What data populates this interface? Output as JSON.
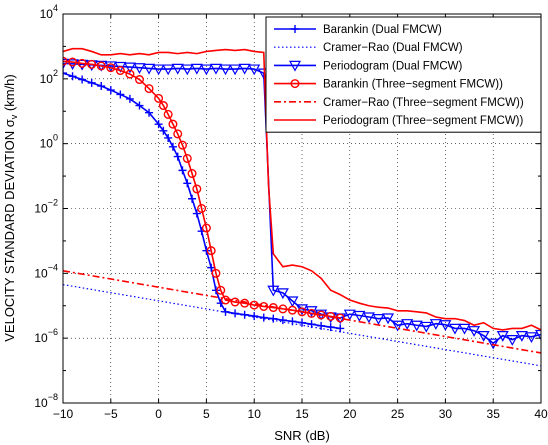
{
  "chart_data": {
    "type": "line",
    "title": "",
    "xlabel": "SNR (dB)",
    "ylabel": "VELOCITY STANDARD DEVIATION  σ",
    "ylabel_subscript": "v",
    "ylabel_unit": " (km/h)",
    "xlim": [
      -10,
      40
    ],
    "ylim": [
      1e-08,
      10000.0
    ],
    "yscale": "log",
    "grid": true,
    "legend_position": "top-right",
    "x_ticks": [
      -10,
      -5,
      0,
      5,
      10,
      15,
      20,
      25,
      30,
      35,
      40
    ],
    "x_tick_labels": [
      "−10",
      "−5",
      "0",
      "5",
      "10",
      "15",
      "20",
      "25",
      "30",
      "35",
      "40"
    ],
    "y_ticks": [
      1e-08,
      1e-06,
      0.0001,
      0.01,
      1,
      100,
      10000
    ],
    "y_tick_labels": [
      {
        "base": "10",
        "exp": "−8"
      },
      {
        "base": "10",
        "exp": "−6"
      },
      {
        "base": "10",
        "exp": "−4"
      },
      {
        "base": "10",
        "exp": "−2"
      },
      {
        "base": "10",
        "exp": "0"
      },
      {
        "base": "10",
        "exp": "2"
      },
      {
        "base": "10",
        "exp": "4"
      }
    ],
    "series": [
      {
        "name": "Barankin (Dual FMCW)",
        "color": "#0000ff",
        "line": "solid",
        "marker": "plus",
        "x": [
          -10,
          -9,
          -8,
          -7,
          -6,
          -5,
          -4,
          -3,
          -2,
          -1,
          0,
          0.5,
          1,
          1.5,
          2,
          2.5,
          3,
          3.5,
          4,
          4.5,
          5,
          5.5,
          6,
          6.5,
          7,
          8,
          9,
          10,
          11,
          12,
          13,
          14,
          15,
          16,
          17,
          18,
          19
        ],
        "y": [
          150,
          120,
          95,
          75,
          60,
          45,
          33,
          24,
          15,
          9,
          4,
          2.5,
          1.5,
          0.8,
          0.4,
          0.15,
          0.06,
          0.02,
          0.007,
          0.002,
          0.0005,
          0.00015,
          3e-05,
          1.2e-05,
          6.5e-06,
          5.8e-06,
          5.3e-06,
          4.8e-06,
          4.3e-06,
          4e-06,
          3.6e-06,
          3.3e-06,
          3e-06,
          2.7e-06,
          2.4e-06,
          2.2e-06,
          2e-06
        ]
      },
      {
        "name": "Cramer−Rao (Dual FMCW)",
        "color": "#0000ff",
        "line": "dotted",
        "marker": "none",
        "x": [
          -10,
          40
        ],
        "y": [
          4.5e-05,
          1.4e-07
        ]
      },
      {
        "name": "Periodogram (Dual FMCW)",
        "color": "#0000ff",
        "line": "solid",
        "marker": "triangle-down",
        "x": [
          -10,
          -9,
          -8,
          -7,
          -6,
          -5,
          -4,
          -3,
          -2,
          -1,
          0,
          1,
          2,
          3,
          4,
          5,
          6,
          7,
          8,
          9,
          10,
          11,
          12,
          13,
          14,
          15,
          16,
          17,
          18,
          19,
          20,
          21,
          22,
          23,
          24,
          25,
          26,
          27,
          28,
          29,
          30,
          31,
          32,
          33,
          34,
          35,
          36,
          37,
          38,
          39,
          40
        ],
        "y": [
          300,
          290,
          280,
          270,
          260,
          250,
          240,
          230,
          220,
          210,
          200,
          200,
          210,
          200,
          210,
          200,
          210,
          200,
          200,
          210,
          200,
          150,
          3e-05,
          2.5e-05,
          1.4e-05,
          8e-06,
          7e-06,
          5.5e-06,
          4.5e-06,
          4.2e-06,
          5.5e-06,
          5e-06,
          4.5e-06,
          4e-06,
          4.2e-06,
          2.5e-06,
          2.8e-06,
          2.5e-06,
          2.3e-06,
          2.8e-06,
          2.6e-06,
          2e-06,
          2e-06,
          1.7e-06,
          1.2e-06,
          7e-07,
          1.2e-06,
          9e-07,
          1.2e-06,
          1.1e-06,
          1.3e-06
        ]
      },
      {
        "name": "Barankin (Three−segment FMCW))",
        "color": "#ff0000",
        "line": "solid",
        "marker": "circle",
        "x": [
          -10,
          -9,
          -8,
          -7,
          -6,
          -5,
          -4,
          -3,
          -2,
          -1,
          0,
          0.5,
          1,
          1.5,
          2,
          2.5,
          3,
          3.5,
          4,
          4.5,
          5,
          5.5,
          6,
          6.5,
          7,
          8,
          9,
          10,
          11,
          12,
          13,
          14,
          15,
          16,
          17,
          18,
          19
        ],
        "y": [
          350,
          330,
          300,
          280,
          250,
          220,
          180,
          140,
          95,
          50,
          25,
          15,
          8,
          4,
          2,
          0.9,
          0.35,
          0.12,
          0.04,
          0.01,
          0.0025,
          0.0005,
          0.0001,
          3e-05,
          1.5e-05,
          1.3e-05,
          1.2e-05,
          1.05e-05,
          9.5e-06,
          8.8e-06,
          8e-06,
          7.3e-06,
          6.5e-06,
          5.8e-06,
          5.2e-06,
          4.7e-06,
          4.2e-06
        ]
      },
      {
        "name": "Cramer−Rao (Three−segment FMCW))",
        "color": "#ff0000",
        "line": "dashdot",
        "marker": "none",
        "x": [
          -10,
          40
        ],
        "y": [
          0.00012,
          3.5e-07
        ]
      },
      {
        "name": "Periodogram (Three−segment FMCW))",
        "color": "#ff0000",
        "line": "solid",
        "marker": "none",
        "x": [
          -10,
          -9,
          -8,
          -7,
          -6,
          -5,
          -4,
          -3,
          -2,
          -1,
          0,
          1,
          2,
          3,
          4,
          5,
          6,
          7,
          8,
          9,
          10,
          11,
          11.5,
          12,
          13,
          14,
          15,
          16,
          17,
          18,
          19,
          20,
          21,
          22,
          23,
          24,
          25,
          26,
          27,
          28,
          29,
          30,
          31,
          32,
          33,
          34,
          35,
          36,
          37,
          38,
          39,
          40
        ],
        "y": [
          700,
          850,
          850,
          700,
          550,
          550,
          600,
          550,
          600,
          550,
          650,
          650,
          600,
          650,
          600,
          700,
          750,
          800,
          750,
          800,
          700,
          650,
          0.05,
          0.0004,
          0.00016,
          0.00018,
          0.00016,
          0.00012,
          7e-05,
          3e-05,
          2.2e-05,
          1.5e-05,
          1.2e-05,
          1e-05,
          9e-06,
          8.5e-06,
          7e-06,
          7e-06,
          6.5e-06,
          6e-06,
          4.5e-06,
          4e-06,
          4e-06,
          3.5e-06,
          2.5e-06,
          3e-06,
          2e-06,
          1.8e-06,
          2e-06,
          2e-06,
          2.5e-06,
          1.8e-06
        ]
      }
    ]
  }
}
